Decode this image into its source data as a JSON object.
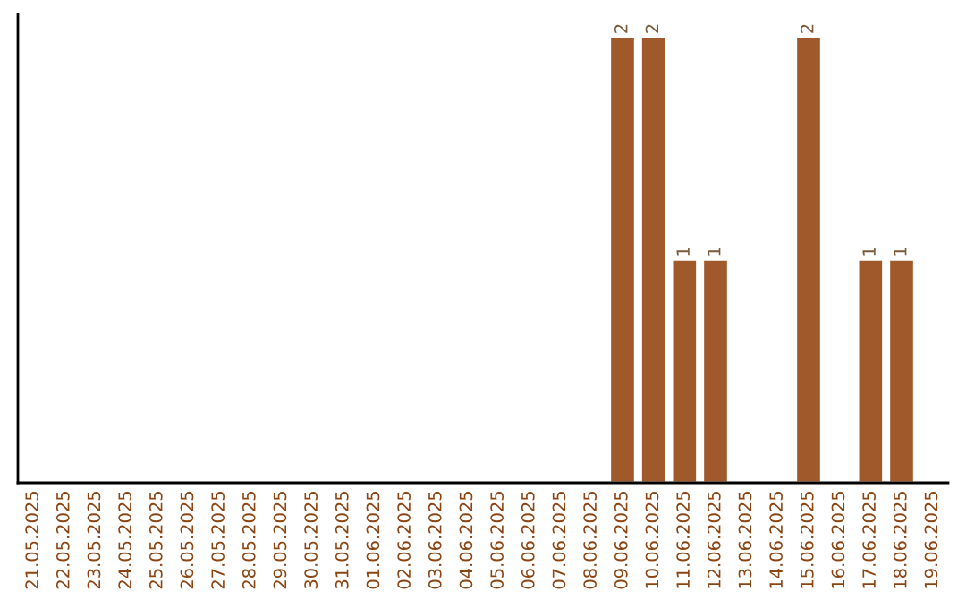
{
  "chart_data": {
    "type": "bar",
    "categories": [
      "21.05.2025",
      "22.05.2025",
      "23.05.2025",
      "24.05.2025",
      "25.05.2025",
      "26.05.2025",
      "27.05.2025",
      "28.05.2025",
      "29.05.2025",
      "30.05.2025",
      "31.05.2025",
      "01.06.2025",
      "02.06.2025",
      "03.06.2025",
      "04.06.2025",
      "05.06.2025",
      "06.06.2025",
      "07.06.2025",
      "08.06.2025",
      "09.06.2025",
      "10.06.2025",
      "11.06.2025",
      "12.06.2025",
      "13.06.2025",
      "14.06.2025",
      "15.06.2025",
      "16.06.2025",
      "17.06.2025",
      "18.06.2025",
      "19.06.2025"
    ],
    "values": [
      null,
      null,
      null,
      null,
      null,
      null,
      null,
      null,
      null,
      null,
      null,
      null,
      null,
      null,
      null,
      null,
      null,
      null,
      null,
      2,
      2,
      1,
      1,
      null,
      null,
      2,
      null,
      1,
      1,
      null
    ],
    "data_labels": true,
    "color": "#a0592b",
    "grid": false,
    "legend": false
  }
}
